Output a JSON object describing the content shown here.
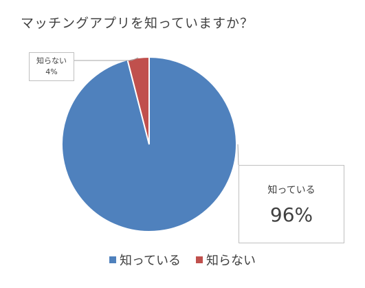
{
  "chart_data": {
    "type": "pie",
    "title": "マッチングアプリを知っていますか？",
    "categories": [
      "知っている",
      "知らない"
    ],
    "values": [
      96,
      4
    ],
    "value_labels": [
      "96%",
      "4%"
    ],
    "colors": [
      "#4f81bd",
      "#c0504d"
    ],
    "legend_position": "bottom"
  }
}
